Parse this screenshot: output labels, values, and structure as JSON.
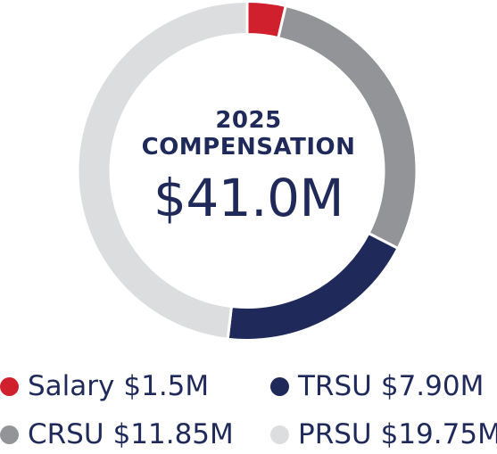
{
  "header": {
    "year": "2025",
    "label": "COMPENSATION",
    "total": "$41.0M"
  },
  "colors": {
    "salary": "#d0202e",
    "trsu": "#1f2a5a",
    "crsu": "#929497",
    "prsu": "#dcdddf",
    "text": "#1f2a5a"
  },
  "chart_data": {
    "type": "pie",
    "donut": true,
    "title": "2025 COMPENSATION",
    "total_label": "$41.0M",
    "legend_position": "bottom",
    "slices": [
      {
        "name": "Salary",
        "value": 1.5,
        "value_label": "$1.5M",
        "color": "#d0202e"
      },
      {
        "name": "CRSU",
        "value": 11.85,
        "value_label": "$11.85M",
        "color": "#929497"
      },
      {
        "name": "TRSU",
        "value": 7.9,
        "value_label": "$7.90M",
        "color": "#1f2a5a"
      },
      {
        "name": "PRSU",
        "value": 19.75,
        "value_label": "$19.75M",
        "color": "#dcdddf"
      }
    ]
  },
  "legend": [
    {
      "name": "Salary",
      "value_label": "$1.5M",
      "color": "#d0202e"
    },
    {
      "name": "TRSU",
      "value_label": "$7.90M",
      "color": "#1f2a5a"
    },
    {
      "name": "CRSU",
      "value_label": "$11.85M",
      "color": "#929497"
    },
    {
      "name": "PRSU",
      "value_label": "$19.75M",
      "color": "#dcdddf"
    }
  ]
}
